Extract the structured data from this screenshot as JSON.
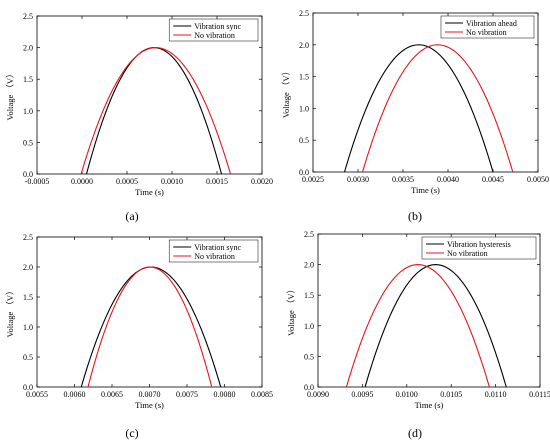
{
  "chart_data": [
    {
      "type": "line",
      "caption": "(a)",
      "xlabel": "Time (s)",
      "ylabel": "Voltage （V）",
      "xlim": [
        -0.0005,
        0.002
      ],
      "ylim": [
        0,
        2.5
      ],
      "xticks": [
        "-0.0005",
        "0.0000",
        "0.0005",
        "0.0010",
        "0.0015",
        "0.0020"
      ],
      "yticks": [
        "0.0",
        "0.5",
        "1.0",
        "1.5",
        "2.0",
        "2.5"
      ],
      "legend_position": "top-right",
      "series": [
        {
          "name": "Vibration sync",
          "color": "#000000",
          "start": 5e-05,
          "end": 0.00155,
          "peak": 2.0
        },
        {
          "name": "No vibration",
          "color": "#e8141b",
          "start": -1e-05,
          "end": 0.00165,
          "peak": 2.0
        }
      ]
    },
    {
      "type": "line",
      "caption": "(b)",
      "xlabel": "Time (s)",
      "ylabel": "Voltage （V）",
      "xlim": [
        0.0025,
        0.005
      ],
      "ylim": [
        0,
        2.5
      ],
      "xticks": [
        "0.0025",
        "0.0030",
        "0.0035",
        "0.0040",
        "0.0045",
        "0.0050"
      ],
      "yticks": [
        "0.0",
        "0.5",
        "1.0",
        "1.5",
        "2.0",
        "2.5"
      ],
      "legend_position": "top-right",
      "series": [
        {
          "name": "Vibration ahead",
          "color": "#000000",
          "start": 0.00285,
          "end": 0.0045,
          "peak": 2.0
        },
        {
          "name": "No vibration",
          "color": "#e8141b",
          "start": 0.00305,
          "end": 0.00472,
          "peak": 2.0
        }
      ]
    },
    {
      "type": "line",
      "caption": "(c)",
      "xlabel": "Time (s)",
      "ylabel": "Voltage （V）",
      "xlim": [
        0.0055,
        0.0085
      ],
      "ylim": [
        0,
        2.5
      ],
      "xticks": [
        "0.0055",
        "0.0060",
        "0.0065",
        "0.0070",
        "0.0075",
        "0.0080",
        "0.0085"
      ],
      "yticks": [
        "0.0",
        "0.5",
        "1.0",
        "1.5",
        "2.0",
        "2.5"
      ],
      "legend_position": "top-right",
      "series": [
        {
          "name": "Vibration sync",
          "color": "#000000",
          "start": 0.00609,
          "end": 0.00795,
          "peak": 2.0
        },
        {
          "name": "No vibration",
          "color": "#e8141b",
          "start": 0.00618,
          "end": 0.00783,
          "peak": 2.0
        }
      ]
    },
    {
      "type": "line",
      "caption": "(d)",
      "xlabel": "Time (s)",
      "ylabel": "Voltage （V）",
      "xlim": [
        0.009,
        0.0115
      ],
      "ylim": [
        0,
        2.5
      ],
      "xticks": [
        "0.0090",
        "0.0095",
        "0.0100",
        "0.0105",
        "0.0110",
        "0.0115"
      ],
      "yticks": [
        "0.0",
        "0.5",
        "1.0",
        "1.5",
        "2.0",
        "2.5"
      ],
      "legend_position": "top-right",
      "series": [
        {
          "name": "Vibration hysteresis",
          "color": "#000000",
          "start": 0.00953,
          "end": 0.01112,
          "peak": 2.0
        },
        {
          "name": "No vibration",
          "color": "#e8141b",
          "start": 0.00932,
          "end": 0.01093,
          "peak": 2.0
        }
      ]
    }
  ]
}
